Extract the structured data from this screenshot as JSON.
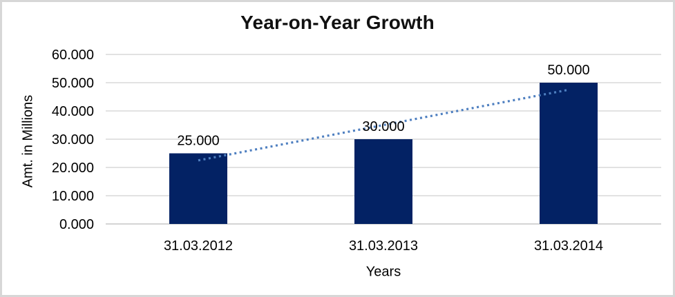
{
  "chart_data": {
    "type": "bar",
    "title": "Year-on-Year Growth",
    "categories": [
      "31.03.2012",
      "31.03.2013",
      "31.03.2014"
    ],
    "values": [
      25,
      30,
      50
    ],
    "value_labels": [
      "25.000",
      "30.000",
      "50.000"
    ],
    "xlabel": "Years",
    "ylabel": "Amt. in Millions",
    "ylim": [
      0,
      60
    ],
    "ytick_step": 10,
    "ytick_labels": [
      "0.000",
      "10.000",
      "20.000",
      "30.000",
      "40.000",
      "50.000",
      "60.000"
    ],
    "grid": true,
    "legend": "none",
    "bar_color": "#032264",
    "trendline": {
      "type": "linear",
      "style": "dotted",
      "color": "#4e7fc0",
      "start_value": 22.5,
      "end_value": 47.5
    }
  },
  "colors": {
    "background": "#ffffff",
    "frame_border": "#d7d7d7",
    "gridline": "#d9d9d9",
    "baseline": "#c6c6c6",
    "text": "#000000"
  }
}
